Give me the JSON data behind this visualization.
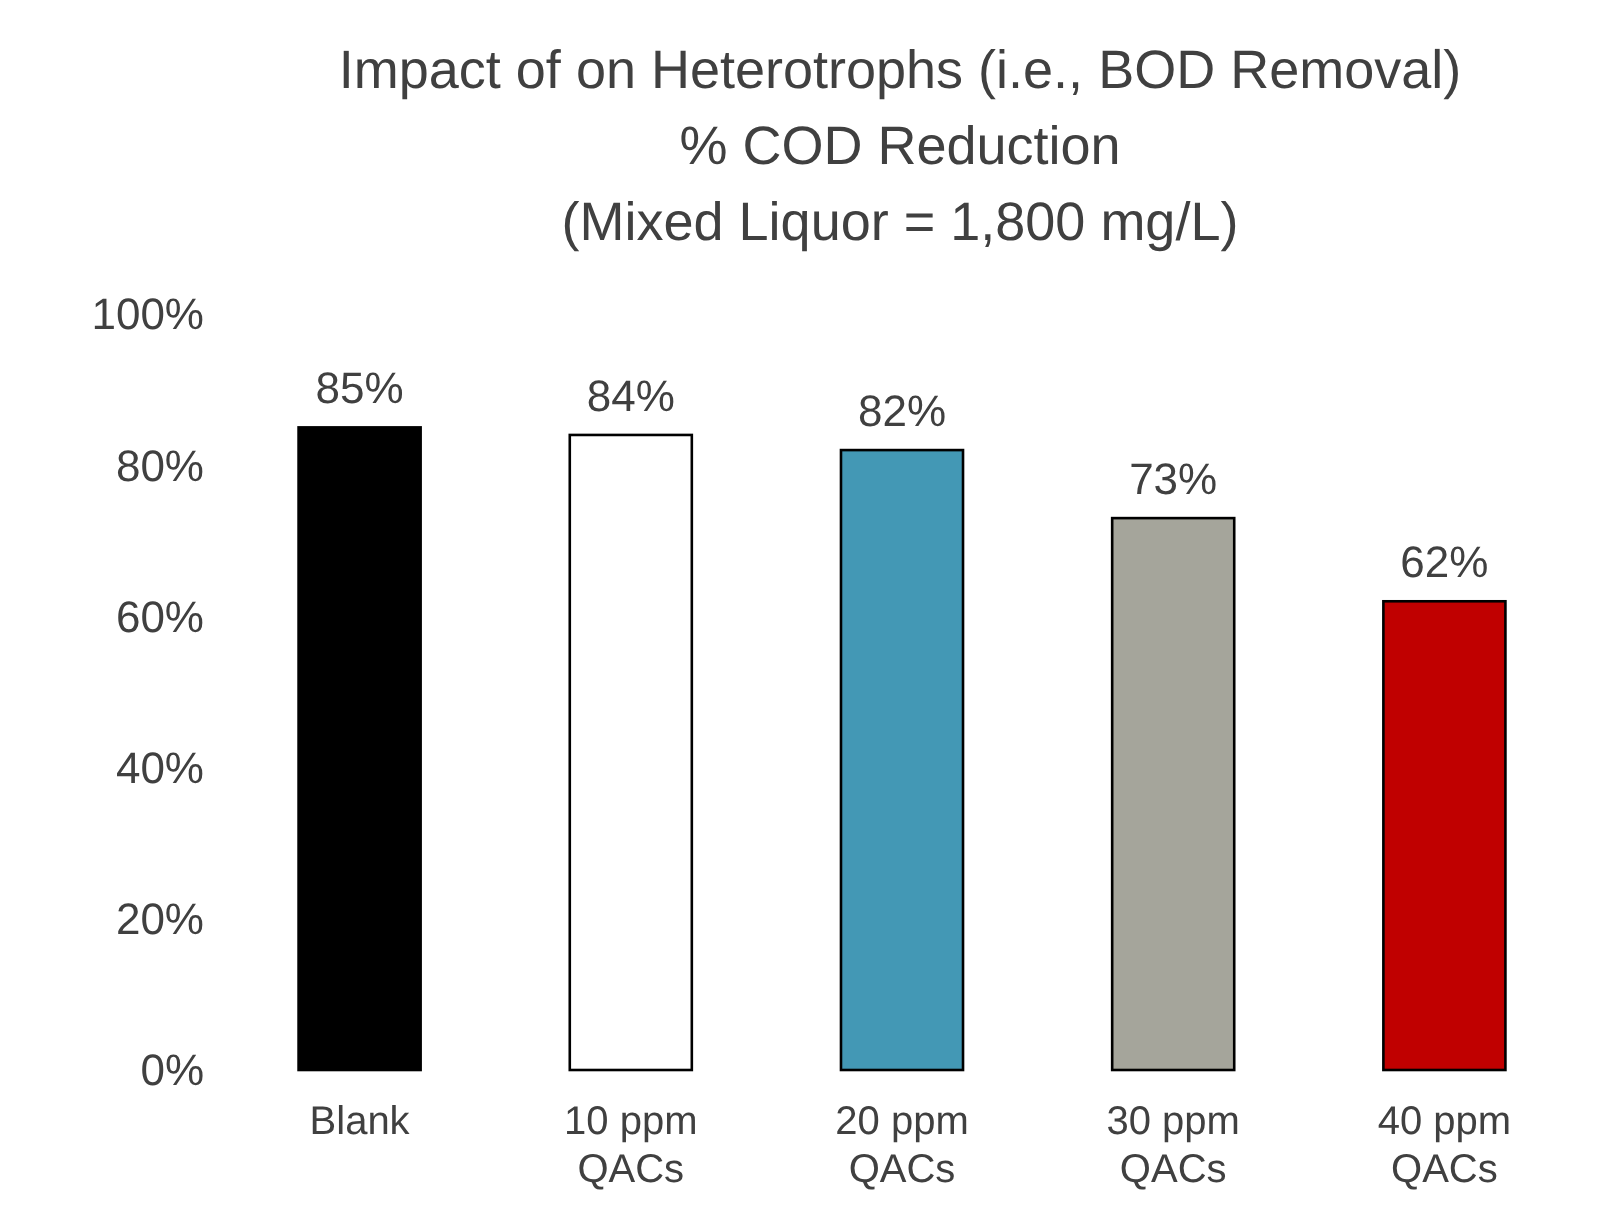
{
  "chart_data": {
    "type": "bar",
    "title": "Impact of on Heterotrophs (i.e., BOD Removal)\n% COD Reduction\n(Mixed Liquor = 1,800 mg/L)",
    "categories": [
      "Blank",
      "10 ppm QACs",
      "20 ppm QACs",
      "30 ppm QACs",
      "40 ppm QACs"
    ],
    "values": [
      85,
      84,
      82,
      73,
      62
    ],
    "colors": [
      "#000000",
      "#ffffff",
      "#4398b5",
      "#a5a59b",
      "#c00000"
    ],
    "value_labels": [
      "85%",
      "84%",
      "82%",
      "73%",
      "62%"
    ],
    "ylim": [
      0,
      100
    ],
    "yticks": [
      {
        "value": 0,
        "label": "0%"
      },
      {
        "value": 20,
        "label": "20%"
      },
      {
        "value": 40,
        "label": "40%"
      },
      {
        "value": 60,
        "label": "60%"
      },
      {
        "value": 80,
        "label": "80%"
      },
      {
        "value": 100,
        "label": "100%"
      }
    ],
    "grid": false
  }
}
